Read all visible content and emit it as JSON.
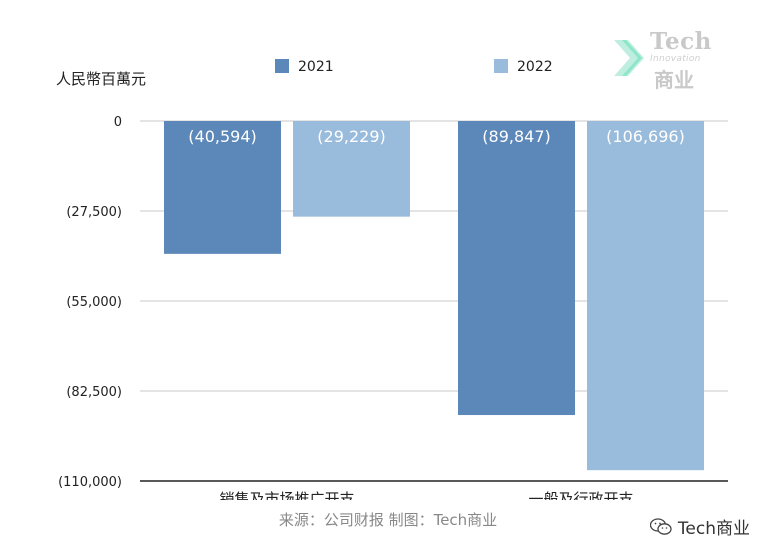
{
  "chart_data": {
    "type": "bar",
    "unit_label": "人民幣百萬元",
    "categories": [
      "销售及市场推广开支",
      "一般及行政开支"
    ],
    "series": [
      {
        "name": "2021",
        "color": "#5b87b9",
        "values": [
          -40594,
          -89847
        ],
        "labels": [
          "(40,594)",
          "(89,847)"
        ]
      },
      {
        "name": "2022",
        "color": "#99bbdc",
        "values": [
          -29229,
          -106696
        ],
        "labels": [
          "(29,229)",
          "(106,696)"
        ]
      }
    ],
    "ylim": [
      -110000,
      0
    ],
    "yticks": [
      0,
      -27500,
      -55000,
      -82500,
      -110000
    ],
    "ytick_labels": [
      "0",
      "(27,500)",
      "(55,000)",
      "(82,500)",
      "(110,000)"
    ],
    "legend_position": "top",
    "grid": true
  },
  "footer": {
    "source": "来源：公司财报 制图：Tech商业",
    "wechat_handle": "Tech商业"
  },
  "logo": {
    "title": "Tech",
    "subtitle": "Innovation",
    "cn": "商业"
  }
}
